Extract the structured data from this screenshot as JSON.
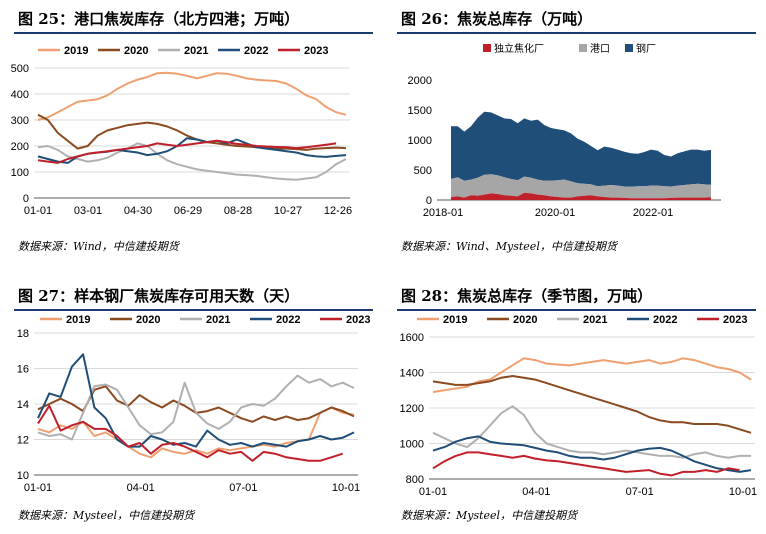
{
  "chart_data": [
    {
      "type": "line",
      "title": "图 25：港口焦炭库存（北方四港；万吨）",
      "source": "数据来源：Wind，中信建投期货",
      "x_ticks": [
        "01-01",
        "03-01",
        "04-30",
        "06-29",
        "08-28",
        "10-27",
        "12-26"
      ],
      "ylim": [
        0,
        500
      ],
      "y_ticks": [
        0,
        100,
        200,
        300,
        400,
        500
      ],
      "grid": true,
      "legend_position": "top",
      "series": [
        {
          "name": "2019",
          "color": "#f0a070",
          "values": [
            300,
            310,
            330,
            350,
            370,
            375,
            380,
            395,
            420,
            440,
            455,
            465,
            480,
            482,
            478,
            470,
            460,
            470,
            480,
            478,
            470,
            460,
            455,
            452,
            450,
            440,
            420,
            395,
            380,
            350,
            330,
            320
          ]
        },
        {
          "name": "2020",
          "color": "#8b4a1f",
          "values": [
            320,
            300,
            250,
            220,
            190,
            200,
            240,
            260,
            270,
            280,
            285,
            290,
            285,
            275,
            260,
            240,
            225,
            215,
            210,
            205,
            200,
            198,
            195,
            192,
            190,
            190,
            188,
            185,
            190,
            192,
            194,
            192
          ]
        },
        {
          "name": "2021",
          "color": "#b0b0b0",
          "values": [
            195,
            200,
            185,
            160,
            150,
            140,
            145,
            155,
            175,
            190,
            210,
            200,
            170,
            145,
            130,
            120,
            110,
            105,
            100,
            95,
            90,
            88,
            85,
            80,
            75,
            72,
            70,
            75,
            80,
            100,
            130,
            150
          ]
        },
        {
          "name": "2022",
          "color": "#1f4e79",
          "values": [
            160,
            150,
            140,
            135,
            160,
            170,
            175,
            178,
            185,
            180,
            175,
            165,
            170,
            180,
            200,
            230,
            225,
            215,
            220,
            210,
            225,
            210,
            195,
            190,
            185,
            180,
            175,
            165,
            160,
            158,
            162,
            165
          ]
        },
        {
          "name": "2023",
          "color": "#c0202a",
          "values": [
            145,
            140,
            135,
            150,
            160,
            170,
            175,
            180,
            185,
            190,
            195,
            200,
            210,
            205,
            200,
            205,
            210,
            215,
            220,
            215,
            208,
            205,
            200,
            198,
            196,
            195,
            192,
            195,
            200,
            205,
            210,
            null
          ]
        }
      ]
    },
    {
      "type": "area",
      "title": "图 26：焦炭总库存（万吨）",
      "source": "数据来源：Wind、Mysteel，中信建投期货",
      "x_ticks": [
        "2018-01",
        "2020-01",
        "2022-01"
      ],
      "ylim": [
        0,
        2000
      ],
      "y_ticks": [
        0,
        500,
        1000,
        1500,
        2000
      ],
      "grid": false,
      "legend_position": "top",
      "stacked": true,
      "series": [
        {
          "name": "独立焦化厂",
          "color": "#c0202a",
          "values": [
            50,
            60,
            40,
            80,
            70,
            90,
            110,
            100,
            80,
            70,
            60,
            120,
            110,
            90,
            80,
            60,
            50,
            40,
            40,
            60,
            70,
            80,
            60,
            50,
            40,
            40,
            35,
            30,
            30,
            30,
            30,
            30,
            30,
            35,
            40,
            40,
            40,
            40,
            40,
            45
          ]
        },
        {
          "name": "港口",
          "color": "#a6a6a6",
          "values": [
            300,
            320,
            280,
            260,
            300,
            330,
            320,
            310,
            300,
            280,
            270,
            270,
            260,
            250,
            240,
            260,
            280,
            300,
            270,
            220,
            200,
            180,
            170,
            190,
            210,
            200,
            190,
            190,
            200,
            200,
            210,
            210,
            200,
            190,
            200,
            210,
            220,
            230,
            220,
            210
          ]
        },
        {
          "name": "钢厂",
          "color": "#1f4e79",
          "values": [
            880,
            850,
            820,
            890,
            1000,
            1050,
            1030,
            1000,
            980,
            1000,
            950,
            970,
            950,
            1000,
            930,
            880,
            850,
            820,
            800,
            740,
            700,
            640,
            600,
            650,
            620,
            600,
            580,
            560,
            540,
            570,
            600,
            580,
            520,
            500,
            540,
            560,
            580,
            570,
            560,
            580
          ]
        }
      ]
    },
    {
      "type": "line",
      "title": "图 27：样本钢厂焦炭库存可用天数（天）",
      "source": "数据来源：Mysteel，中信建投期货",
      "x_ticks": [
        "01-01",
        "04-01",
        "07-01",
        "10-01"
      ],
      "ylim": [
        10,
        18
      ],
      "y_ticks": [
        10,
        12,
        14,
        16,
        18
      ],
      "grid": true,
      "legend_position": "top",
      "series": [
        {
          "name": "2019",
          "color": "#f0a070",
          "values": [
            12.6,
            12.4,
            12.8,
            12.6,
            13.0,
            12.2,
            12.4,
            12.0,
            11.6,
            11.2,
            11.0,
            11.5,
            11.3,
            11.2,
            11.4,
            11.2,
            11.5,
            11.4,
            11.5,
            11.6,
            11.7,
            11.6,
            11.8,
            11.9,
            12.0,
            13.5,
            13.8,
            13.5,
            13.4
          ]
        },
        {
          "name": "2020",
          "color": "#8b4a1f",
          "values": [
            13.7,
            14.0,
            14.3,
            14.0,
            13.6,
            14.8,
            15.0,
            14.2,
            13.9,
            14.5,
            14.1,
            13.8,
            14.2,
            13.9,
            13.5,
            13.6,
            13.8,
            13.5,
            13.2,
            13.0,
            13.3,
            13.1,
            13.3,
            13.1,
            13.2,
            13.5,
            13.8,
            13.6,
            13.3
          ]
        },
        {
          "name": "2021",
          "color": "#b0b0b0",
          "values": [
            12.4,
            12.2,
            12.3,
            12.0,
            13.5,
            15.0,
            15.1,
            14.8,
            13.8,
            12.8,
            12.3,
            12.4,
            13.0,
            15.2,
            13.5,
            12.9,
            12.6,
            13.0,
            13.8,
            14.0,
            13.9,
            14.3,
            15.0,
            15.6,
            15.2,
            15.4,
            15.0,
            15.2,
            14.9
          ]
        },
        {
          "name": "2022",
          "color": "#1f4e79",
          "values": [
            13.2,
            14.6,
            14.4,
            16.1,
            16.8,
            13.8,
            13.2,
            12.0,
            11.6,
            11.6,
            12.2,
            12.0,
            11.7,
            11.8,
            11.6,
            12.5,
            12.0,
            11.7,
            11.8,
            11.6,
            11.8,
            11.7,
            11.6,
            11.9,
            12.0,
            12.2,
            12.0,
            12.1,
            12.4
          ]
        },
        {
          "name": "2023",
          "color": "#c0202a",
          "values": [
            12.9,
            13.9,
            12.5,
            12.8,
            13.0,
            12.6,
            12.6,
            12.2,
            11.6,
            11.8,
            11.2,
            11.7,
            11.8,
            11.6,
            11.3,
            11.0,
            11.4,
            11.2,
            11.3,
            10.8,
            11.3,
            11.2,
            11.0,
            10.9,
            10.8,
            10.8,
            11.0,
            11.2,
            null
          ]
        }
      ]
    },
    {
      "type": "line",
      "title": "图 28：焦炭总库存（季节图，万吨）",
      "source": "数据来源：Mysteel，中信建投期货",
      "x_ticks": [
        "01-01",
        "04-01",
        "07-01",
        "10-01"
      ],
      "ylim": [
        800,
        1600
      ],
      "y_ticks": [
        800,
        1000,
        1200,
        1400,
        1600
      ],
      "grid": true,
      "legend_position": "top",
      "series": [
        {
          "name": "2019",
          "color": "#f0a070",
          "values": [
            1290,
            1300,
            1310,
            1320,
            1350,
            1360,
            1400,
            1440,
            1480,
            1470,
            1450,
            1445,
            1440,
            1450,
            1460,
            1470,
            1460,
            1450,
            1460,
            1470,
            1450,
            1460,
            1480,
            1470,
            1450,
            1430,
            1420,
            1400,
            1360
          ]
        },
        {
          "name": "2020",
          "color": "#8b4a1f",
          "values": [
            1350,
            1340,
            1330,
            1330,
            1340,
            1350,
            1370,
            1380,
            1370,
            1360,
            1340,
            1320,
            1300,
            1280,
            1260,
            1240,
            1220,
            1200,
            1180,
            1150,
            1130,
            1120,
            1120,
            1110,
            1110,
            1110,
            1100,
            1080,
            1060
          ]
        },
        {
          "name": "2021",
          "color": "#b0b0b0",
          "values": [
            1060,
            1030,
            1000,
            980,
            1030,
            1100,
            1170,
            1210,
            1160,
            1060,
            1000,
            980,
            960,
            950,
            950,
            940,
            950,
            960,
            950,
            940,
            930,
            930,
            920,
            940,
            950,
            930,
            920,
            930,
            930
          ]
        },
        {
          "name": "2022",
          "color": "#1f4e79",
          "values": [
            960,
            980,
            1010,
            1030,
            1040,
            1010,
            1000,
            995,
            990,
            975,
            960,
            950,
            930,
            920,
            920,
            910,
            920,
            940,
            960,
            970,
            975,
            960,
            930,
            900,
            880,
            860,
            850,
            840,
            850
          ]
        },
        {
          "name": "2023",
          "color": "#c0202a",
          "values": [
            860,
            900,
            930,
            950,
            950,
            940,
            930,
            920,
            930,
            915,
            905,
            900,
            890,
            880,
            870,
            860,
            850,
            840,
            845,
            850,
            830,
            820,
            840,
            840,
            850,
            840,
            860,
            850,
            null
          ]
        }
      ]
    }
  ]
}
